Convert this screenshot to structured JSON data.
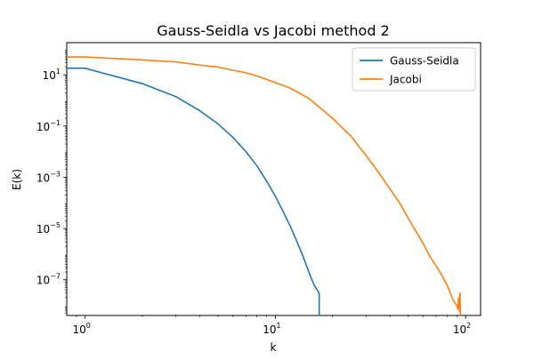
{
  "chart_data": {
    "type": "line",
    "title": "Gauss-Seidla vs Jacobi method 2",
    "xlabel": "k",
    "ylabel": "E(k)",
    "xscale": "log",
    "yscale": "log",
    "xlim": [
      0.8,
      120
    ],
    "ylim": [
      4e-09,
      180
    ],
    "grid": false,
    "legend": "top-right",
    "x_ticks": [
      {
        "value": 1,
        "base": "10",
        "exp": "0"
      },
      {
        "value": 10,
        "base": "10",
        "exp": "1"
      },
      {
        "value": 100,
        "base": "10",
        "exp": "2"
      }
    ],
    "y_ticks": [
      {
        "value": 10,
        "base": "10",
        "exp": "1"
      },
      {
        "value": 0.1,
        "base": "10",
        "exp": "−1"
      },
      {
        "value": 0.001,
        "base": "10",
        "exp": "−3"
      },
      {
        "value": 1e-05,
        "base": "10",
        "exp": "−5"
      },
      {
        "value": 1e-07,
        "base": "10",
        "exp": "−7"
      }
    ],
    "series": [
      {
        "name": "Gauss-Seidla",
        "color": "#1f77b4",
        "x": [
          0.8,
          1,
          2,
          3,
          4,
          5,
          6,
          7,
          8,
          9,
          10,
          11,
          12,
          13,
          14,
          15,
          16,
          17,
          17
        ],
        "y": [
          18,
          18,
          4.5,
          1.4,
          0.4,
          0.12,
          0.035,
          0.01,
          0.0028,
          0.0007,
          0.00018,
          4.5e-05,
          1.2e-05,
          3e-06,
          8e-07,
          2e-07,
          6e-08,
          3e-08,
          4e-09
        ]
      },
      {
        "name": "Jacobi",
        "color": "#ff7f0e",
        "x": [
          0.8,
          1,
          2,
          3,
          4,
          5,
          6,
          7,
          8,
          10,
          12,
          15,
          20,
          25,
          30,
          35,
          40,
          45,
          50,
          55,
          60,
          65,
          70,
          75,
          80,
          85,
          88,
          90,
          91,
          92,
          93,
          93.5,
          94,
          94
        ],
        "y": [
          50,
          50,
          38,
          32,
          24,
          20,
          15,
          12,
          9,
          5,
          3,
          1.2,
          0.2,
          0.04,
          0.007,
          0.0015,
          0.00035,
          0.0001,
          2.5e-05,
          7.5e-06,
          2.5e-06,
          8e-07,
          3.5e-07,
          1.5e-07,
          6e-08,
          2e-08,
          1.2e-08,
          1e-08,
          7e-09,
          2e-08,
          6e-09,
          3e-08,
          4e-09,
          4e-09
        ]
      }
    ]
  }
}
